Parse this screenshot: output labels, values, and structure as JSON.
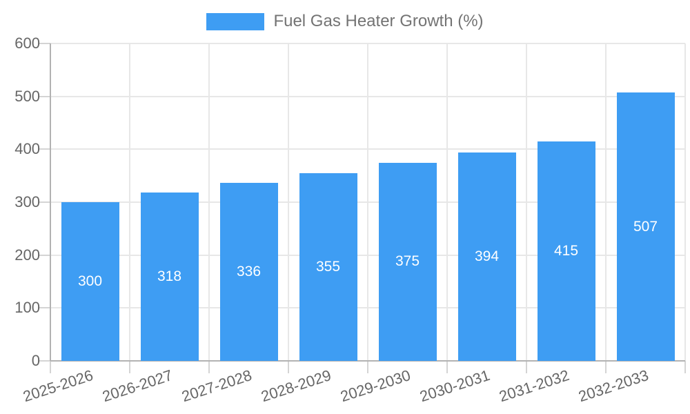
{
  "chart_data": {
    "type": "bar",
    "title": "",
    "legend_label": "Fuel Gas Heater Growth (%)",
    "legend_position": "top",
    "categories": [
      "2025-2026",
      "2026-2027",
      "2027-2028",
      "2028-2029",
      "2029-2030",
      "2030-2031",
      "2031-2032",
      "2032-2033"
    ],
    "values": [
      300,
      318,
      336,
      355,
      375,
      394,
      415,
      507
    ],
    "value_labels": [
      "300",
      "318",
      "336",
      "355",
      "375",
      "394",
      "415",
      "507"
    ],
    "xlabel": "",
    "ylabel": "",
    "ylim": [
      0,
      600
    ],
    "yticks": [
      0,
      100,
      200,
      300,
      400,
      500,
      600
    ],
    "grid": true,
    "colors": {
      "bar": "#3e9df3",
      "value_label": "#ffffff",
      "axis_text": "#666666",
      "legend_text": "#737373",
      "gridline": "#e7e7e7",
      "axis_line": "#b2b2b2"
    }
  }
}
